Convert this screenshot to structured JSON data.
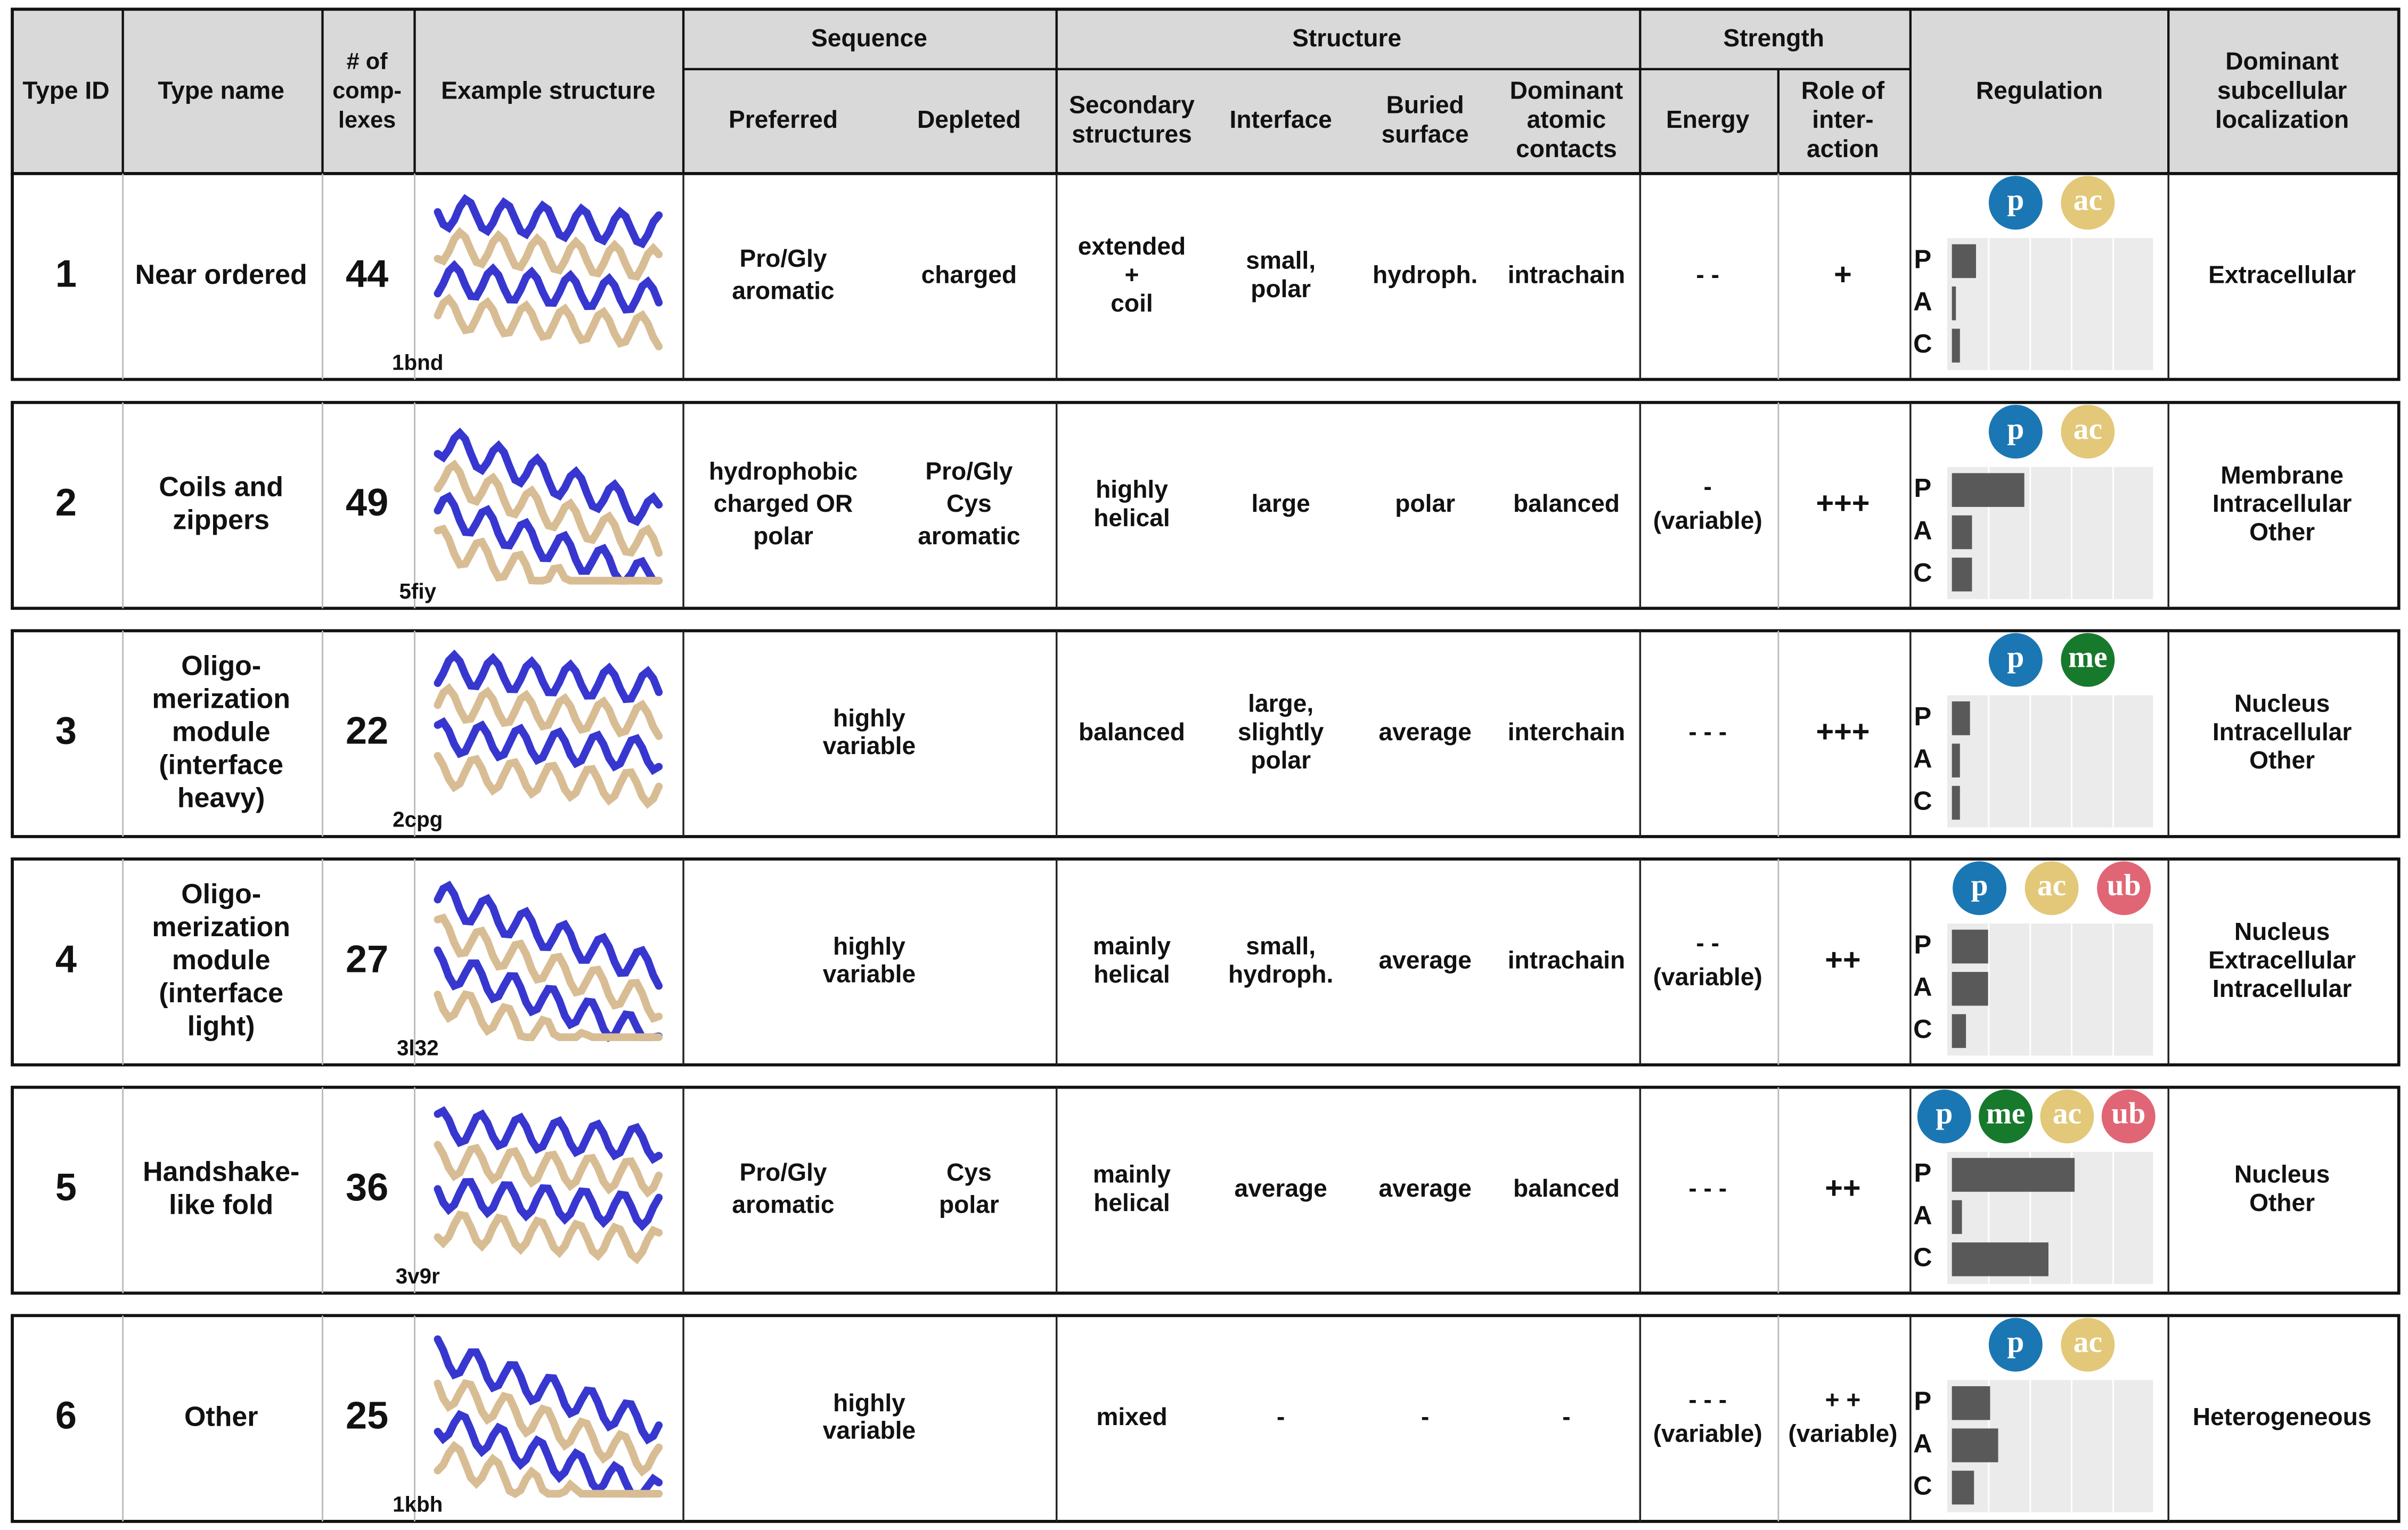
{
  "header": {
    "type_id": "Type ID",
    "type_name": "Type name",
    "complexes": [
      "# of",
      "comp-",
      "lexes"
    ],
    "structure": "Example structure",
    "sequence": "Sequence",
    "preferred": "Preferred",
    "depleted": "Depleted",
    "structure_group": "Structure",
    "secondary": [
      "Secondary",
      "structures"
    ],
    "interface": "Interface",
    "buried": [
      "Buried",
      "surface"
    ],
    "contacts": [
      "Dominant",
      "atomic",
      "contacts"
    ],
    "strength": "Strength",
    "energy": "Energy",
    "role": [
      "Role of",
      "inter-",
      "action"
    ],
    "regulation": "Regulation",
    "localization": [
      "Dominant",
      "subcellular",
      "localization"
    ]
  },
  "regulation_categories": [
    "P",
    "A",
    "C"
  ],
  "badge_colors": {
    "p": "#1b77b3",
    "ac": "#e2c878",
    "me": "#17792c",
    "ub": "#e06676"
  },
  "rows": [
    {
      "type_id": "1",
      "type_name": [
        "Near ordered"
      ],
      "complexes": "44",
      "pdb": "1bnd",
      "preferred": [
        "Pro/Gly",
        "aromatic"
      ],
      "depleted": [
        "charged"
      ],
      "secondary": [
        "extended",
        "+",
        "coil"
      ],
      "interface": [
        "small,",
        "polar"
      ],
      "buried": [
        "hydroph."
      ],
      "contacts": [
        "intrachain"
      ],
      "energy": [
        "- -"
      ],
      "role": [
        "+"
      ],
      "badges": [
        "p",
        "ac"
      ],
      "regulation": {
        "values": [
          12,
          2,
          4
        ],
        "xlim": [
          0,
          100
        ]
      },
      "localization": [
        "Extracellular"
      ]
    },
    {
      "type_id": "2",
      "type_name": [
        "Coils and",
        "zippers"
      ],
      "complexes": "49",
      "pdb": "5fiy",
      "preferred": [
        "hydrophobic",
        "charged OR",
        "polar"
      ],
      "depleted": [
        "Pro/Gly",
        "Cys",
        "aromatic"
      ],
      "secondary": [
        "highly",
        "helical"
      ],
      "interface": [
        "large"
      ],
      "buried": [
        "polar"
      ],
      "contacts": [
        "balanced"
      ],
      "energy": [
        "-",
        "(variable)"
      ],
      "role": [
        "+++"
      ],
      "badges": [
        "p",
        "ac"
      ],
      "regulation": {
        "values": [
          36,
          10,
          10
        ],
        "xlim": [
          0,
          100
        ]
      },
      "localization": [
        "Membrane",
        "Intracellular",
        "Other"
      ]
    },
    {
      "type_id": "3",
      "type_name": [
        "Oligo-",
        "merization",
        "module",
        "(interface",
        "heavy)"
      ],
      "complexes": "22",
      "pdb": "2cpg",
      "sequence": [
        "highly",
        "variable"
      ],
      "secondary": [
        "balanced"
      ],
      "interface": [
        "large,",
        "slightly",
        "polar"
      ],
      "buried": [
        "average"
      ],
      "contacts": [
        "interchain"
      ],
      "energy": [
        "- - -"
      ],
      "role": [
        "+++"
      ],
      "badges": [
        "p",
        "me"
      ],
      "regulation": {
        "values": [
          9,
          4,
          4
        ],
        "xlim": [
          0,
          100
        ]
      },
      "localization": [
        "Nucleus",
        "Intracellular",
        "Other"
      ]
    },
    {
      "type_id": "4",
      "type_name": [
        "Oligo-",
        "merization",
        "module",
        "(interface",
        "light)"
      ],
      "complexes": "27",
      "pdb": "3l32",
      "sequence": [
        "highly",
        "variable"
      ],
      "secondary": [
        "mainly",
        "helical"
      ],
      "interface": [
        "small,",
        "hydroph."
      ],
      "buried": [
        "average"
      ],
      "contacts": [
        "intrachain"
      ],
      "energy": [
        "- -",
        "(variable)"
      ],
      "role": [
        "++"
      ],
      "badges": [
        "p",
        "ac",
        "ub"
      ],
      "regulation": {
        "values": [
          18,
          18,
          7
        ],
        "xlim": [
          0,
          100
        ]
      },
      "localization": [
        "Nucleus",
        "Extracellular",
        "Intracellular"
      ]
    },
    {
      "type_id": "5",
      "type_name": [
        "Handshake-",
        "like fold"
      ],
      "complexes": "36",
      "pdb": "3v9r",
      "preferred": [
        "Pro/Gly",
        "aromatic"
      ],
      "depleted": [
        "Cys",
        "polar"
      ],
      "secondary": [
        "mainly",
        "helical"
      ],
      "interface": [
        "average"
      ],
      "buried": [
        "average"
      ],
      "contacts": [
        "balanced"
      ],
      "energy": [
        "- - -"
      ],
      "role": [
        "++"
      ],
      "badges": [
        "p",
        "me",
        "ac",
        "ub"
      ],
      "regulation": {
        "values": [
          61,
          5,
          48
        ],
        "xlim": [
          0,
          100
        ]
      },
      "localization": [
        "Nucleus",
        "Other"
      ]
    },
    {
      "type_id": "6",
      "type_name": [
        "Other"
      ],
      "complexes": "25",
      "pdb": "1kbh",
      "sequence": [
        "highly",
        "variable"
      ],
      "secondary": [
        "mixed"
      ],
      "interface": [
        "-"
      ],
      "buried": [
        "-"
      ],
      "contacts": [
        "-"
      ],
      "energy": [
        "- - -",
        "(variable)"
      ],
      "role": [
        "+ +",
        "(variable)"
      ],
      "badges": [
        "p",
        "ac"
      ],
      "regulation": {
        "values": [
          19,
          23,
          11
        ],
        "xlim": [
          0,
          100
        ]
      },
      "localization": [
        "Heterogeneous"
      ]
    }
  ]
}
